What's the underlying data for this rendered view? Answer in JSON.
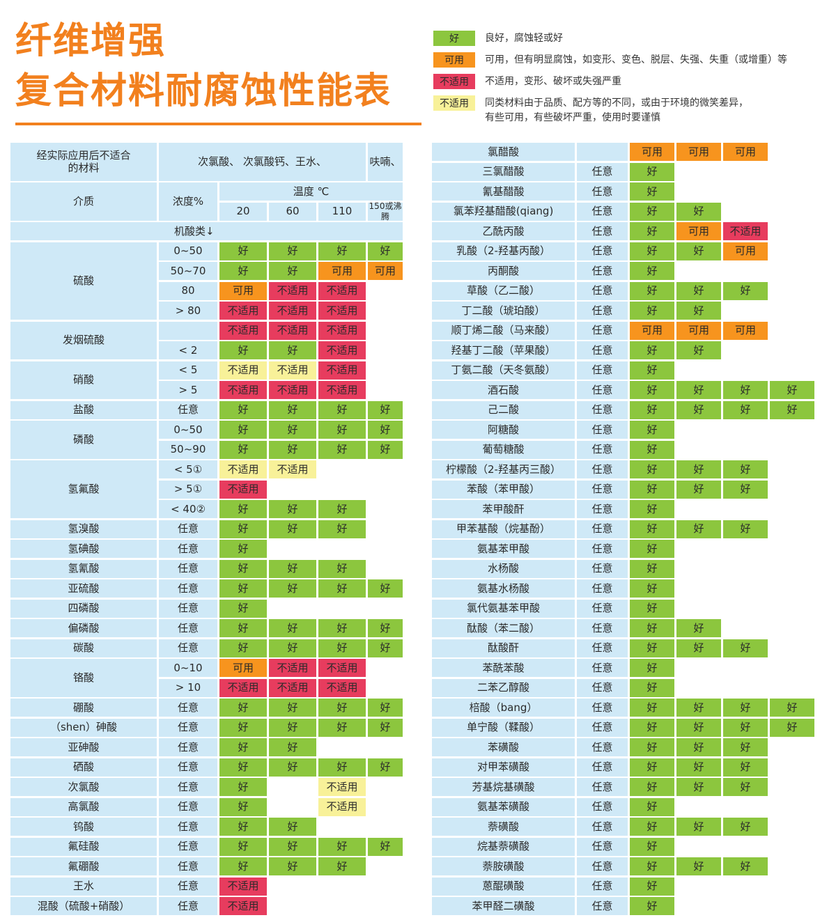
{
  "title": {
    "line1": "纤维增强",
    "line2": "复合材料耐腐蚀性能表"
  },
  "colors": {
    "accent_orange": "#f2801e",
    "good_green": "#8cc63e",
    "usable_orange": "#f7941e",
    "unsuitable_red": "#e73c5e",
    "caution_yellow": "#f8f199",
    "label_blue": "#cfe9f7"
  },
  "cell_labels": {
    "g": "好",
    "o": "可用",
    "r": "不适用",
    "y": "不适用"
  },
  "legend": [
    {
      "label": "好",
      "desc": "良好，腐蚀轻或好"
    },
    {
      "label": "可用",
      "desc": "可用，但有明显腐蚀，如变形、变色、脱层、失强、失重（或增重）等"
    },
    {
      "label": "不适用",
      "desc": "不适用，变形、破坏或失强严重"
    },
    {
      "label": "不适用",
      "desc": "同类材料由于品质、配方等的不同，或由于环境的微笑差异，\n有些可用，有些破坏严重，使用时要谨慎"
    }
  ],
  "left_table": {
    "header_unsuitable": "经实际应用后不适合\n的材料",
    "header_unsuitable_list": "次氯酸、 次氯酸钙、王水、",
    "header_unsuitable_list2": "呋喃、",
    "header_medium": "介质",
    "header_concentration": "浓度%",
    "header_temperature": "温度 ℃",
    "temp_cols": [
      "20",
      "60",
      "110",
      "150或沸腾"
    ],
    "section": "机酸类↓",
    "groups": [
      {
        "name": "硫酸",
        "rows": [
          {
            "conc": "0~50",
            "cells": [
              "g",
              "g",
              "g",
              "g"
            ]
          },
          {
            "conc": "50~70",
            "cells": [
              "g",
              "g",
              "o",
              "o"
            ]
          },
          {
            "conc": "80",
            "cells": [
              "o",
              "r",
              "r",
              null
            ]
          },
          {
            "conc": "> 80",
            "cells": [
              "r",
              "r",
              "r",
              null
            ]
          }
        ]
      },
      {
        "name": "发烟硫酸",
        "rows": [
          {
            "conc": "",
            "cells": [
              "r",
              "r",
              "r",
              null
            ]
          },
          {
            "conc": "< 2",
            "cells": [
              "g",
              "g",
              "r",
              null
            ]
          }
        ]
      },
      {
        "name": "硝酸",
        "rows": [
          {
            "conc": "< 5",
            "cells": [
              "y",
              "y",
              "r",
              null
            ]
          },
          {
            "conc": "> 5",
            "cells": [
              "r",
              "r",
              "r",
              null
            ]
          }
        ]
      },
      {
        "name": "盐酸",
        "rows": [
          {
            "conc": "任意",
            "cells": [
              "g",
              "g",
              "g",
              "g"
            ]
          }
        ]
      },
      {
        "name": "磷酸",
        "rows": [
          {
            "conc": "0~50",
            "cells": [
              "g",
              "g",
              "g",
              "g"
            ]
          },
          {
            "conc": "50~90",
            "cells": [
              "g",
              "g",
              "g",
              "g"
            ]
          }
        ]
      },
      {
        "name": "氢氟酸",
        "rows": [
          {
            "conc": "< 5①",
            "cells": [
              "y",
              "y",
              null,
              null
            ]
          },
          {
            "conc": "> 5①",
            "cells": [
              "r",
              null,
              null,
              null
            ]
          },
          {
            "conc": "< 40②",
            "cells": [
              "g",
              "g",
              "g",
              null
            ]
          }
        ]
      },
      {
        "name": "氢溴酸",
        "rows": [
          {
            "conc": "任意",
            "cells": [
              "g",
              "g",
              "g",
              null
            ]
          }
        ]
      },
      {
        "name": "氢碘酸",
        "rows": [
          {
            "conc": "任意",
            "cells": [
              "g",
              null,
              null,
              null
            ]
          }
        ]
      },
      {
        "name": "氢氰酸",
        "rows": [
          {
            "conc": "任意",
            "cells": [
              "g",
              "g",
              "g",
              null
            ]
          }
        ]
      },
      {
        "name": "亚硫酸",
        "rows": [
          {
            "conc": "任意",
            "cells": [
              "g",
              "g",
              "g",
              "g"
            ]
          }
        ]
      },
      {
        "name": "四磷酸",
        "rows": [
          {
            "conc": "任意",
            "cells": [
              "g",
              null,
              null,
              null
            ]
          }
        ]
      },
      {
        "name": "偏磷酸",
        "rows": [
          {
            "conc": "任意",
            "cells": [
              "g",
              "g",
              "g",
              "g"
            ]
          }
        ]
      },
      {
        "name": "碳酸",
        "rows": [
          {
            "conc": "任意",
            "cells": [
              "g",
              "g",
              "g",
              "g"
            ]
          }
        ]
      },
      {
        "name": "铬酸",
        "rows": [
          {
            "conc": "0~10",
            "cells": [
              "o",
              "r",
              "r",
              null
            ]
          },
          {
            "conc": "> 10",
            "cells": [
              "r",
              "r",
              "r",
              null
            ]
          }
        ]
      },
      {
        "name": "硼酸",
        "rows": [
          {
            "conc": "任意",
            "cells": [
              "g",
              "g",
              "g",
              "g"
            ]
          }
        ]
      },
      {
        "name": "（shen）砷酸",
        "rows": [
          {
            "conc": "任意",
            "cells": [
              "g",
              "g",
              "g",
              "g"
            ]
          }
        ]
      },
      {
        "name": "亚砷酸",
        "rows": [
          {
            "conc": "任意",
            "cells": [
              "g",
              "g",
              null,
              null
            ]
          }
        ]
      },
      {
        "name": "硒酸",
        "rows": [
          {
            "conc": "任意",
            "cells": [
              "g",
              "g",
              "g",
              "g"
            ]
          }
        ]
      },
      {
        "name": "次氯酸",
        "rows": [
          {
            "conc": "任意",
            "cells": [
              "g",
              null,
              "y",
              null
            ]
          }
        ]
      },
      {
        "name": "高氯酸",
        "rows": [
          {
            "conc": "任意",
            "cells": [
              "g",
              null,
              "y",
              null
            ]
          }
        ]
      },
      {
        "name": "钨酸",
        "rows": [
          {
            "conc": "任意",
            "cells": [
              "g",
              "g",
              null,
              null
            ]
          }
        ]
      },
      {
        "name": "氟硅酸",
        "rows": [
          {
            "conc": "任意",
            "cells": [
              "g",
              "g",
              "g",
              "g"
            ]
          }
        ]
      },
      {
        "name": "氟硼酸",
        "rows": [
          {
            "conc": "任意",
            "cells": [
              "g",
              "g",
              "g",
              null
            ]
          }
        ]
      },
      {
        "name": "王水",
        "rows": [
          {
            "conc": "任意",
            "cells": [
              "r",
              null,
              null,
              null
            ]
          }
        ]
      },
      {
        "name": "混酸（硫酸+硝酸）",
        "rows": [
          {
            "conc": "任意",
            "cells": [
              "r",
              null,
              null,
              null
            ]
          }
        ]
      }
    ]
  },
  "right_table": {
    "rows": [
      {
        "name": "氯醋酸",
        "conc": "",
        "cells": [
          "o",
          "o",
          "o",
          null
        ]
      },
      {
        "name": "三氯醋酸",
        "conc": "任意",
        "cells": [
          "g",
          null,
          null,
          null
        ]
      },
      {
        "name": "氰基醋酸",
        "conc": "任意",
        "cells": [
          "g",
          null,
          null,
          null
        ]
      },
      {
        "name": "氯苯羟基醋酸(qiang)",
        "conc": "任意",
        "cells": [
          "g",
          "g",
          null,
          null
        ]
      },
      {
        "name": "乙酰丙酸",
        "conc": "任意",
        "cells": [
          "g",
          "o",
          "r",
          null
        ]
      },
      {
        "name": "乳酸（2-羟基丙酸）",
        "conc": "任意",
        "cells": [
          "g",
          "g",
          "o",
          null
        ]
      },
      {
        "name": "丙酮酸",
        "conc": "任意",
        "cells": [
          "g",
          null,
          null,
          null
        ]
      },
      {
        "name": "草酸（乙二酸）",
        "conc": "任意",
        "cells": [
          "g",
          "g",
          "g",
          null
        ]
      },
      {
        "name": "丁二酸（琥珀酸）",
        "conc": "任意",
        "cells": [
          "g",
          "g",
          null,
          null
        ]
      },
      {
        "name": "顺丁烯二酸（马来酸）",
        "conc": "任意",
        "cells": [
          "o",
          "o",
          "o",
          null
        ]
      },
      {
        "name": "羟基丁二酸（苹果酸）",
        "conc": "任意",
        "cells": [
          "g",
          "g",
          null,
          null
        ]
      },
      {
        "name": "丁氨二酸（天冬氨酸）",
        "conc": "任意",
        "cells": [
          "g",
          null,
          null,
          null
        ]
      },
      {
        "name": "酒石酸",
        "conc": "任意",
        "cells": [
          "g",
          "g",
          "g",
          "g"
        ]
      },
      {
        "name": "己二酸",
        "conc": "任意",
        "cells": [
          "g",
          "g",
          "g",
          "g"
        ]
      },
      {
        "name": "阿糖酸",
        "conc": "任意",
        "cells": [
          "g",
          null,
          null,
          null
        ]
      },
      {
        "name": "葡萄糖酸",
        "conc": "任意",
        "cells": [
          "g",
          null,
          null,
          null
        ]
      },
      {
        "name": "柠檬酸（2-羟基丙三酸）",
        "conc": "任意",
        "cells": [
          "g",
          "g",
          "g",
          null
        ]
      },
      {
        "name": "苯酸（苯甲酸）",
        "conc": "任意",
        "cells": [
          "g",
          "g",
          "g",
          null
        ]
      },
      {
        "name": "苯甲酸酐",
        "conc": "任意",
        "cells": [
          "g",
          null,
          null,
          null
        ]
      },
      {
        "name": "甲苯基酸（烷基酚）",
        "conc": "任意",
        "cells": [
          "g",
          "g",
          "g",
          null
        ]
      },
      {
        "name": "氨基苯甲酸",
        "conc": "任意",
        "cells": [
          "g",
          null,
          null,
          null
        ]
      },
      {
        "name": "水杨酸",
        "conc": "任意",
        "cells": [
          "g",
          null,
          null,
          null
        ]
      },
      {
        "name": "氨基水杨酸",
        "conc": "任意",
        "cells": [
          "g",
          null,
          null,
          null
        ]
      },
      {
        "name": "氯代氨基苯甲酸",
        "conc": "任意",
        "cells": [
          "g",
          null,
          null,
          null
        ]
      },
      {
        "name": "酞酸（苯二酸）",
        "conc": "任意",
        "cells": [
          "g",
          "g",
          null,
          null
        ]
      },
      {
        "name": "酞酸酐",
        "conc": "任意",
        "cells": [
          "g",
          "g",
          "g",
          null
        ]
      },
      {
        "name": "苯酰苯酸",
        "conc": "任意",
        "cells": [
          "g",
          null,
          null,
          null
        ]
      },
      {
        "name": "二苯乙醇酸",
        "conc": "任意",
        "cells": [
          "g",
          null,
          null,
          null
        ]
      },
      {
        "name": "棓酸（bang）",
        "conc": "任意",
        "cells": [
          "g",
          "g",
          "g",
          "g"
        ]
      },
      {
        "name": "单宁酸（鞣酸）",
        "conc": "任意",
        "cells": [
          "g",
          "g",
          "g",
          "g"
        ]
      },
      {
        "name": "苯磺酸",
        "conc": "任意",
        "cells": [
          "g",
          "g",
          "g",
          null
        ]
      },
      {
        "name": "对甲苯磺酸",
        "conc": "任意",
        "cells": [
          "g",
          "g",
          "g",
          null
        ]
      },
      {
        "name": "芳基烷基磺酸",
        "conc": "任意",
        "cells": [
          "g",
          "g",
          "g",
          null
        ]
      },
      {
        "name": "氨基苯磺酸",
        "conc": "任意",
        "cells": [
          "g",
          null,
          null,
          null
        ]
      },
      {
        "name": "萘磺酸",
        "conc": "任意",
        "cells": [
          "g",
          "g",
          "g",
          null
        ]
      },
      {
        "name": "烷基萘磺酸",
        "conc": "任意",
        "cells": [
          "g",
          null,
          null,
          null
        ]
      },
      {
        "name": "萘胺磺酸",
        "conc": "任意",
        "cells": [
          "g",
          "g",
          "g",
          null
        ]
      },
      {
        "name": "蒽醌磺酸",
        "conc": "任意",
        "cells": [
          "g",
          null,
          null,
          null
        ]
      },
      {
        "name": "苯甲醛二磺酸",
        "conc": "任意",
        "cells": [
          "g",
          null,
          null,
          null
        ]
      }
    ]
  }
}
